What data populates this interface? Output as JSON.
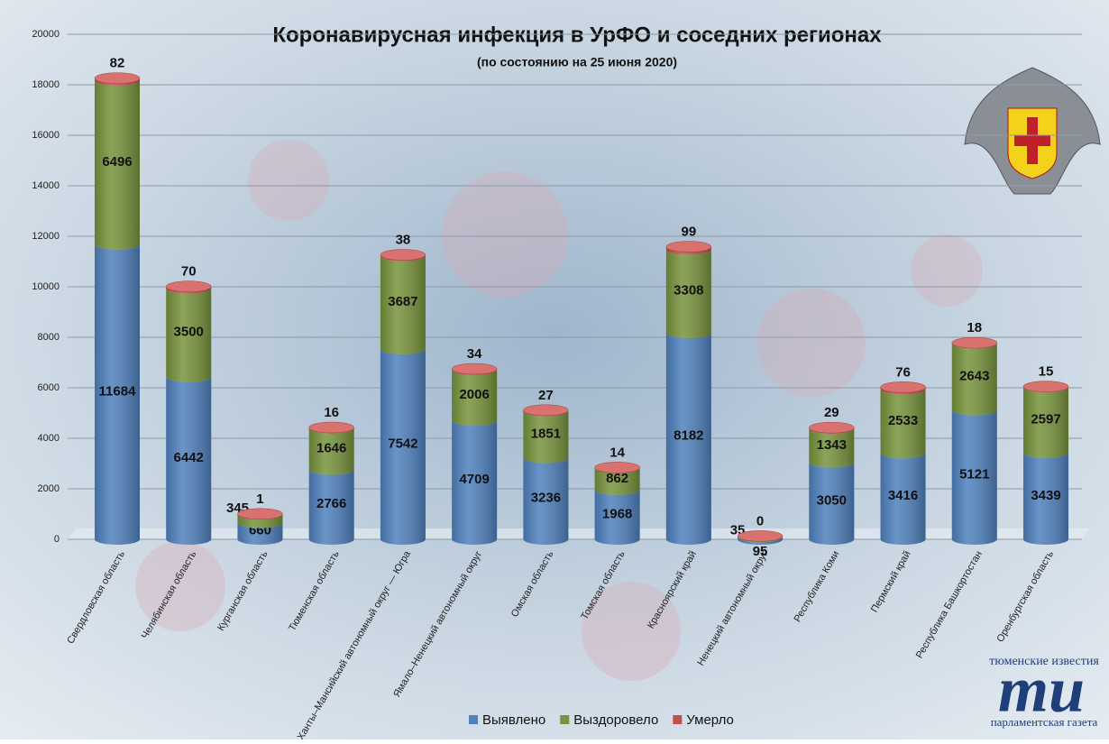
{
  "chart_data": {
    "type": "stacked-cylinder",
    "title": "Коронавирусная инфекция в УрФО и соседних регионах",
    "subtitle": "(по состоянию на 25 июня 2020)",
    "categories": [
      "Свердловская область",
      "Челябинская область",
      "Курганская область",
      "Тюменская область",
      "Ханты–Мансийский  автономный округ — Югра",
      "Ямало–Ненецкий автономный округ",
      "Омская область",
      "Томская область",
      "Красноярский край",
      "Ненецкий автономный округ",
      "Республика Коми",
      "Пермский край",
      "Республика Башкортостан",
      "Оренбургская область"
    ],
    "series": [
      {
        "name": "Выявлено",
        "color": "#4f81bd",
        "values": [
          11684,
          6442,
          660,
          2766,
          7542,
          4709,
          3236,
          1968,
          8182,
          95,
          3050,
          3416,
          5121,
          3439
        ]
      },
      {
        "name": "Выздоровело",
        "color": "#77933c",
        "values": [
          6496,
          3500,
          345,
          1646,
          3687,
          2006,
          1851,
          862,
          3308,
          35,
          1343,
          2533,
          2643,
          2597
        ]
      },
      {
        "name": "Умерло",
        "color": "#c0504d",
        "values": [
          82,
          70,
          1,
          16,
          38,
          34,
          27,
          14,
          99,
          0,
          29,
          76,
          18,
          15
        ]
      }
    ],
    "ylim": [
      0,
      20000
    ],
    "yticks": [
      0,
      2000,
      4000,
      6000,
      8000,
      10000,
      12000,
      14000,
      16000,
      18000,
      20000
    ],
    "grid": true,
    "legend": "bottom"
  },
  "logo": {
    "top": "тюменские известия",
    "mark": "ти",
    "bottom": "парламентская газета"
  }
}
